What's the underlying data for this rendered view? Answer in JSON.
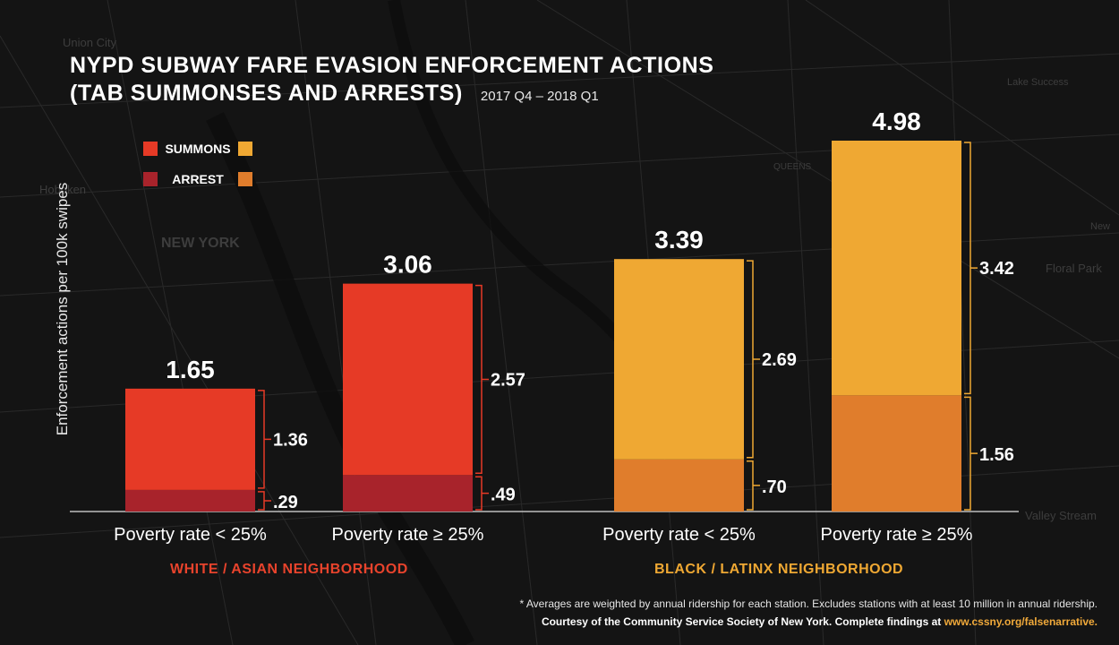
{
  "title_line1": "NYPD SUBWAY FARE EVASION ENFORCEMENT ACTIONS",
  "title_line2": "(TAB SUMMONSES AND ARRESTS)",
  "subtitle": "2017 Q4 – 2018 Q1",
  "legend": {
    "summons": "SUMMONS",
    "arrest": "ARREST"
  },
  "map_labels": [
    "Union City",
    "Hoboken",
    "NEW YORK",
    "QUEENS",
    "Lake Success",
    "New",
    "Floral Park",
    "Valley Stream"
  ],
  "colors": {
    "white_summons": "#e63a26",
    "white_arrest": "#a8232b",
    "black_summons": "#efa833",
    "black_arrest": "#e07d2c",
    "white_group_label": "#e8432c",
    "black_group_label": "#efa833"
  },
  "chart_data": {
    "type": "bar",
    "stacked": true,
    "ylabel": "Enforcement actions per 100k swipes",
    "ylim": [
      0,
      4.98
    ],
    "categories": [
      "Poverty rate < 25%",
      "Poverty rate ≥ 25%",
      "Poverty rate < 25%",
      "Poverty rate ≥ 25%"
    ],
    "groups": [
      {
        "label": "WHITE / ASIAN NEIGHBORHOOD",
        "categories": [
          0,
          1
        ]
      },
      {
        "label": "BLACK / LATINX NEIGHBORHOOD",
        "categories": [
          2,
          3
        ]
      }
    ],
    "series": [
      {
        "name": "ARREST",
        "values": [
          0.29,
          0.49,
          0.7,
          1.56
        ],
        "labels": [
          ".29",
          ".49",
          ".70",
          "1.56"
        ]
      },
      {
        "name": "SUMMONS",
        "values": [
          1.36,
          2.57,
          2.69,
          3.42
        ],
        "labels": [
          "1.36",
          "2.57",
          "2.69",
          "3.42"
        ]
      }
    ],
    "totals": [
      1.65,
      3.06,
      3.39,
      4.98
    ],
    "total_labels": [
      "1.65",
      "3.06",
      "3.39",
      "4.98"
    ],
    "legend_position": "top-left"
  },
  "footnote": {
    "line1": "* Averages are weighted by annual ridership for each station. Excludes stations with at least 10 million in annual ridership.",
    "line2": "Courtesy of the Community Service Society of New York. Complete findings at ",
    "link": "www.cssny.org/falsenarrative."
  }
}
